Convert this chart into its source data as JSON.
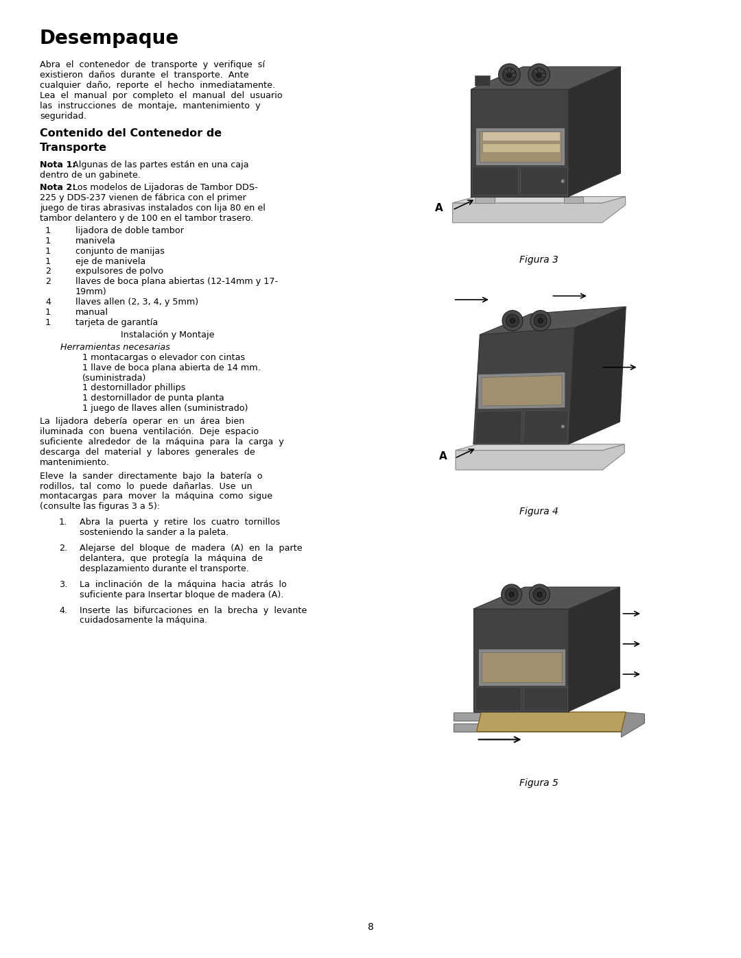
{
  "bg_color": "#ffffff",
  "title": "Desempaque",
  "page_number": "8",
  "body_font_size": 9.2,
  "title_font_size": 20,
  "subtitle_font_size": 11.5,
  "para1_lines": [
    "Abra  el  contenedor  de  transporte  y  verifique  sí",
    "existieron  daños  durante  el  transporte.  Ante",
    "cualquier  daño,  reporte  el  hecho  inmediatamente.",
    "Lea  el  manual  por  completo  el  manual  del  usuario",
    "las  instrucciones  de  montaje,  mantenimiento  y",
    "seguridad."
  ],
  "nota1_bold": "Nota 1:",
  "nota1_rest": " Algunas de las partes están en una caja",
  "nota1_rest2": "dentro de un gabinete.",
  "nota2_bold": "Nota 2:",
  "nota2_line1": " Los modelos de Lijadoras de Tambor DDS-",
  "nota2_lines": [
    "225 y DDS-237 vienen de fábrica con el primer",
    "juego de tiras abrasivas instalados con lija 80 en el",
    "tambor delantero y de 100 en el tambor trasero."
  ],
  "items": [
    [
      "1",
      "lijadora de doble tambor"
    ],
    [
      "1",
      "manivela"
    ],
    [
      "1",
      "conjunto de manijas"
    ],
    [
      "1",
      "eje de manivela"
    ],
    [
      "2",
      "expulsores de polvo"
    ],
    [
      "2",
      "llaves de boca plana abiertas (12-14mm y 17-"
    ],
    [
      "",
      "19mm)"
    ],
    [
      "4",
      "llaves allen (2, 3, 4, y 5mm)"
    ],
    [
      "1",
      "manual"
    ],
    [
      "1",
      "tarjeta de garantía"
    ]
  ],
  "instalacion": "Instalación y Montaje",
  "herramientas_label": "Herramientas necesarias",
  "herramientas_items": [
    "1 montacargas o elevador con cintas",
    "1 llave de boca plana abierta de 14 mm.",
    "(suministrada)",
    "1 destornillador phillips",
    "1 destornillador de punta planta",
    "1 juego de llaves allen (suministrado)"
  ],
  "para2_lines": [
    "La  lijadora  debería  operar  en  un  área  bien",
    "iluminada  con  buena  ventilación.  Deje  espacio",
    "suficiente  alrededor  de  la  máquina  para  la  carga  y",
    "descarga  del  material  y  labores  generales  de",
    "mantenimiento."
  ],
  "para3_lines": [
    "Eleve  la  sander  directamente  bajo  la  batería  o",
    "rodillos,  tal  como  lo  puede  dañarlas.  Use  un",
    "montacargas  para  mover  la  máquina  como  sigue",
    "(consulte las figuras 3 a 5):"
  ],
  "numbered_items": [
    [
      "Abra  la  puerta  y  retire  los  cuatro  tornillos",
      "sosteniendo la sander a la paleta."
    ],
    [
      "Alejarse  del  bloque  de  madera  (A)  en  la  parte",
      "delantera,  que  protegía  la  máquina  de",
      "desplazamiento durante el transporte."
    ],
    [
      "La  inclinación  de  la  máquina  hacia  atrás  lo",
      "suficiente para Insertar bloque de madera (A)."
    ],
    [
      "Inserte  las  bifurcaciones  en  la  brecha  y  levante",
      "cuidadosamente la máquina."
    ]
  ],
  "fig3_caption": "Figura 3",
  "fig4_caption": "Figura 4",
  "fig5_caption": "Figura 5"
}
